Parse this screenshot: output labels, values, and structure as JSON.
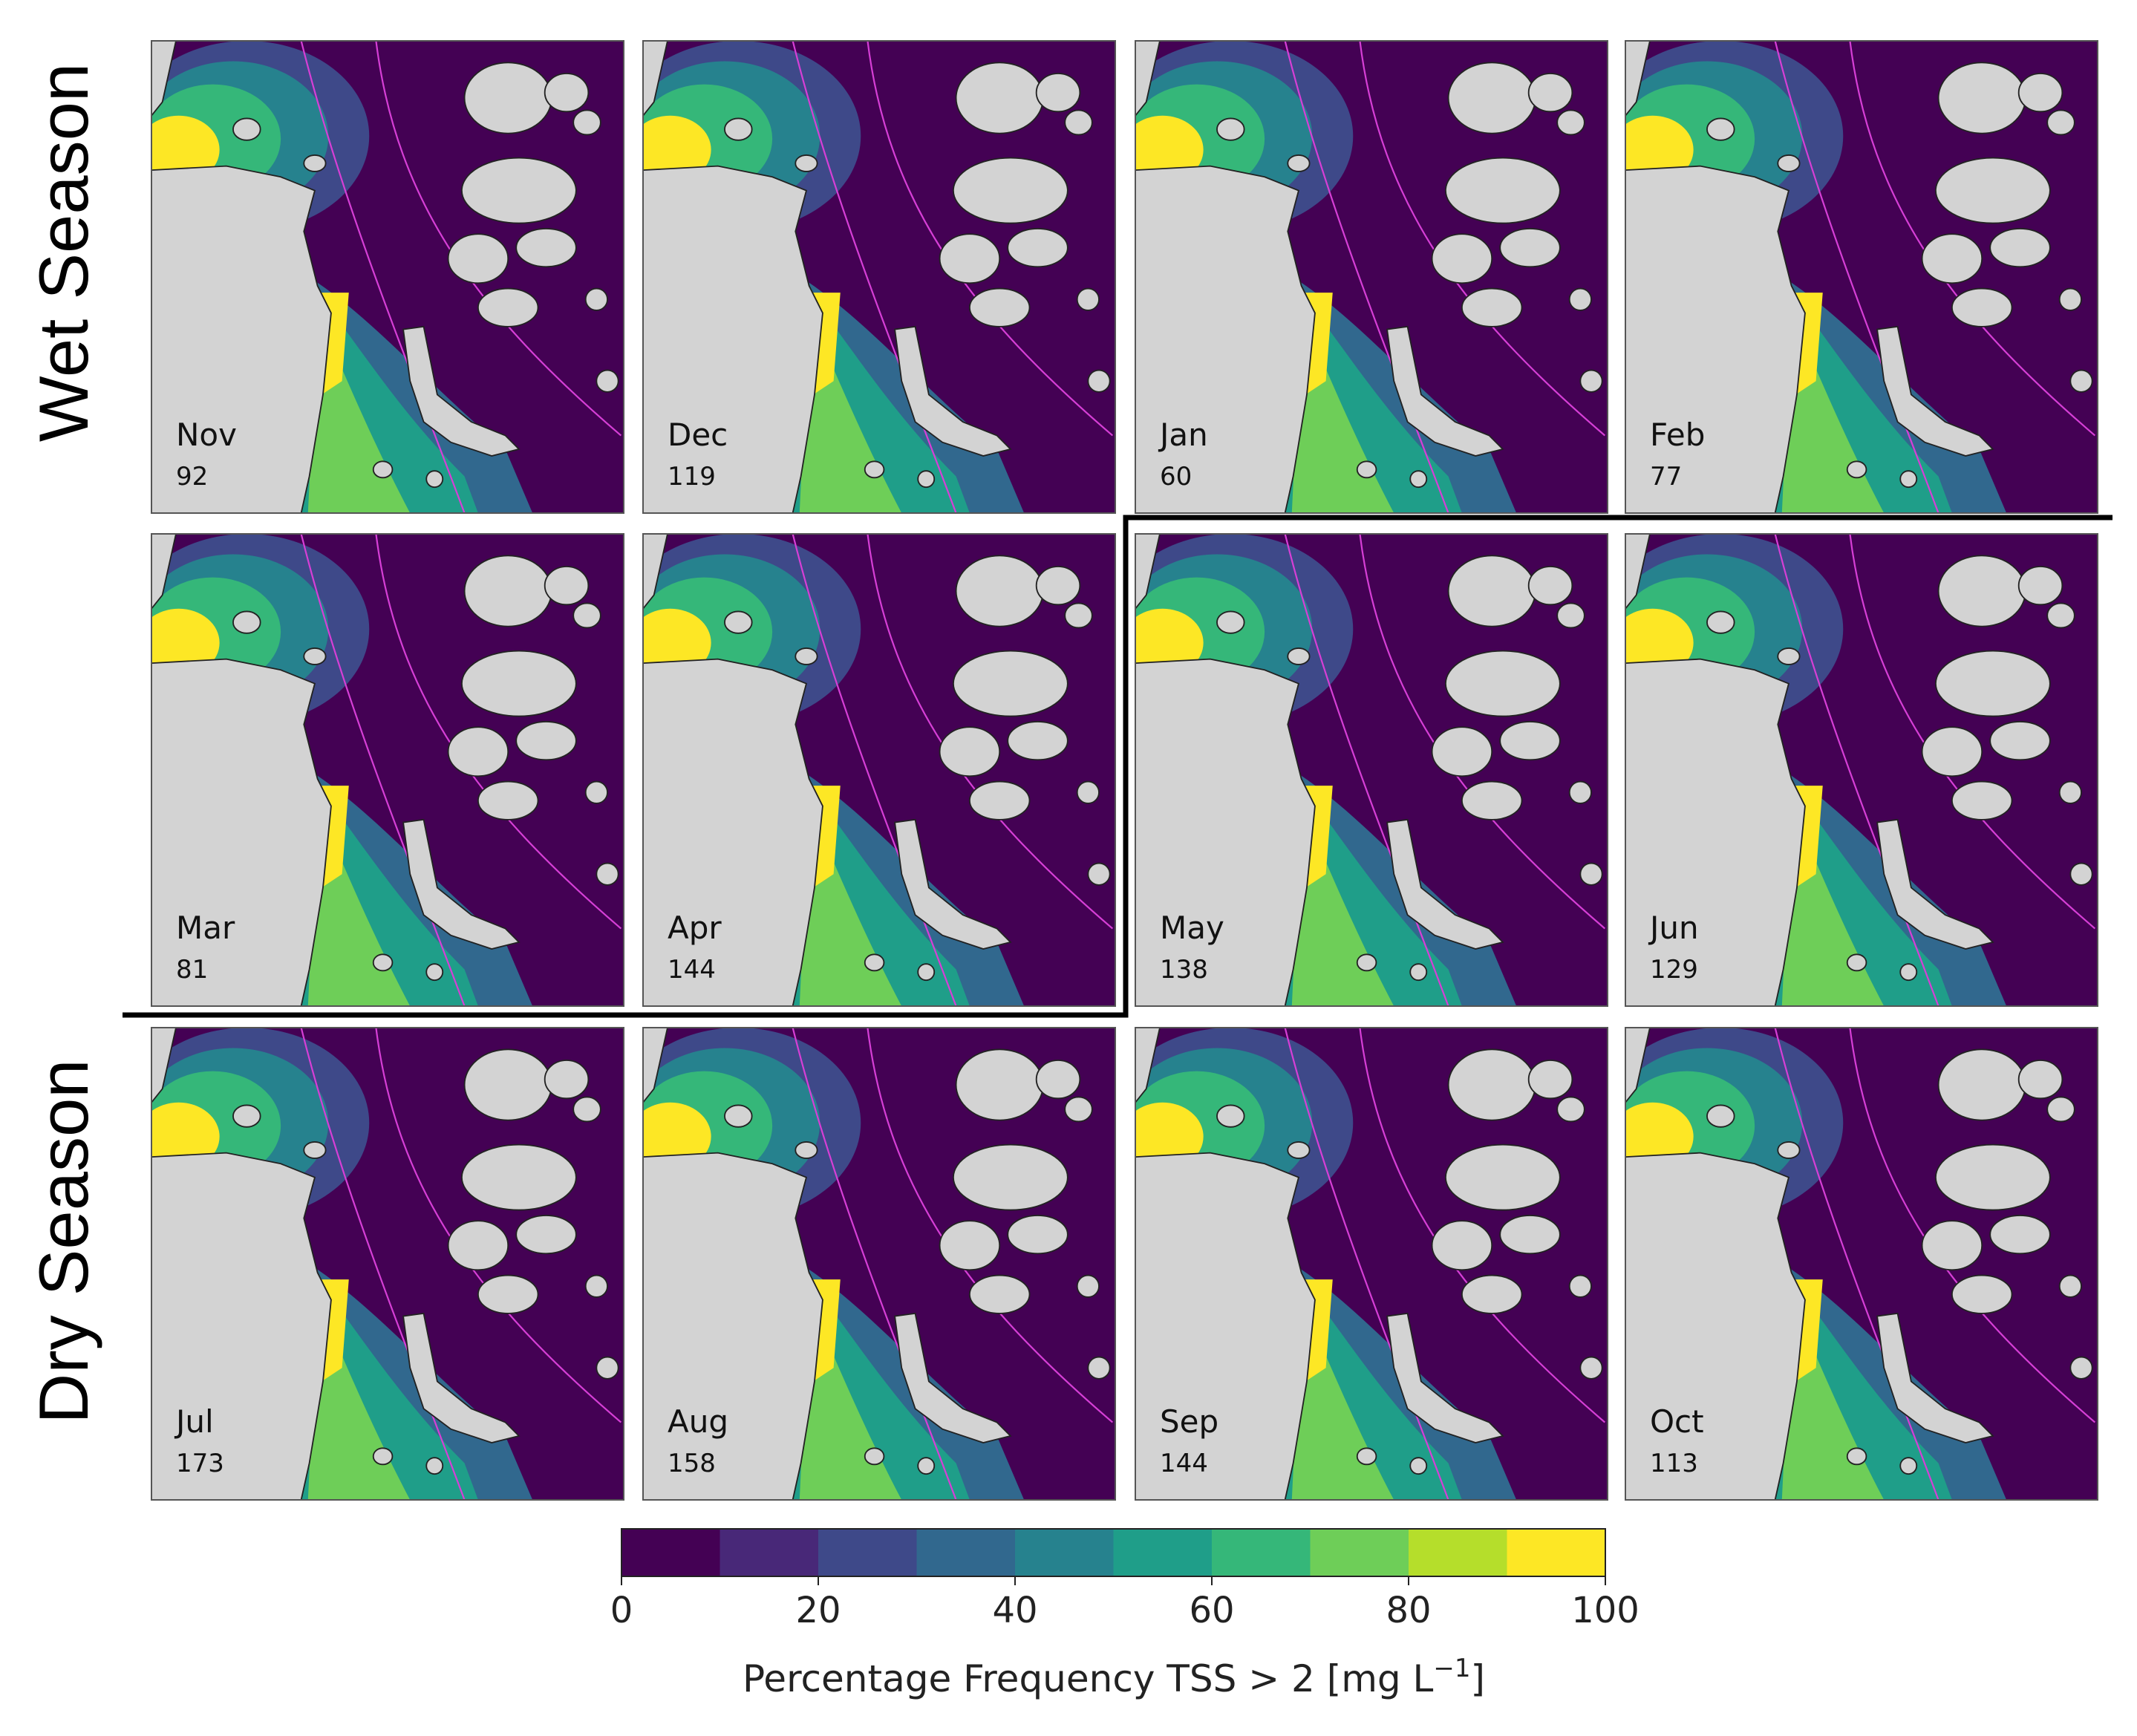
{
  "row_labels": [
    "Wet Season",
    "Dry Season"
  ],
  "panels": [
    {
      "month": "Nov",
      "count": 92
    },
    {
      "month": "Dec",
      "count": 119
    },
    {
      "month": "Jan",
      "count": 60
    },
    {
      "month": "Feb",
      "count": 77
    },
    {
      "month": "Mar",
      "count": 81
    },
    {
      "month": "Apr",
      "count": 144
    },
    {
      "month": "May",
      "count": 138
    },
    {
      "month": "Jun",
      "count": 129
    },
    {
      "month": "Jul",
      "count": 173
    },
    {
      "month": "Aug",
      "count": 158
    },
    {
      "month": "Sep",
      "count": 144
    },
    {
      "month": "Oct",
      "count": 113
    }
  ],
  "colorbar": {
    "lim": [
      0,
      100
    ],
    "ticks": [
      0,
      20,
      40,
      60,
      80,
      100
    ],
    "boundaries": [
      0,
      10,
      20,
      30,
      40,
      50,
      60,
      70,
      80,
      90,
      100
    ],
    "colors": [
      "#440154",
      "#482878",
      "#3e4989",
      "#31688e",
      "#26828e",
      "#1f9e89",
      "#35b779",
      "#6ece58",
      "#b5de2b",
      "#fde725"
    ],
    "label": "Percentage Frequency TSS > 2 [mg L",
    "label_sup": "−1",
    "label_end": "]"
  }
}
